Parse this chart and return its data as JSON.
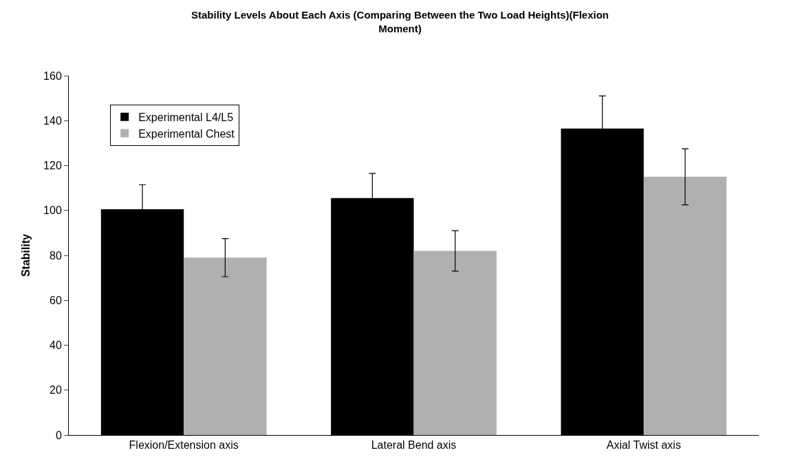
{
  "chart_data": {
    "type": "bar",
    "title": "Stability Levels About Each Axis (Comparing Between the Two Load Heights)(Flexion Moment)",
    "ylabel": "Stability",
    "categories": [
      "Flexion/Extension axis",
      "Lateral Bend axis",
      "Axial Twist axis"
    ],
    "series": [
      {
        "name": "Experimental L4/L5",
        "color": "#000000",
        "values": [
          100.5,
          105.5,
          136.5
        ],
        "errors": [
          11,
          11,
          14.5
        ]
      },
      {
        "name": "Experimental Chest",
        "color": "#b0b0b0",
        "values": [
          79,
          82,
          115
        ],
        "errors": [
          8.5,
          9,
          12.5
        ]
      }
    ],
    "ylim": [
      0,
      160
    ],
    "yticks": [
      0,
      20,
      40,
      60,
      80,
      100,
      120,
      140,
      160
    ],
    "legend": "top left"
  }
}
